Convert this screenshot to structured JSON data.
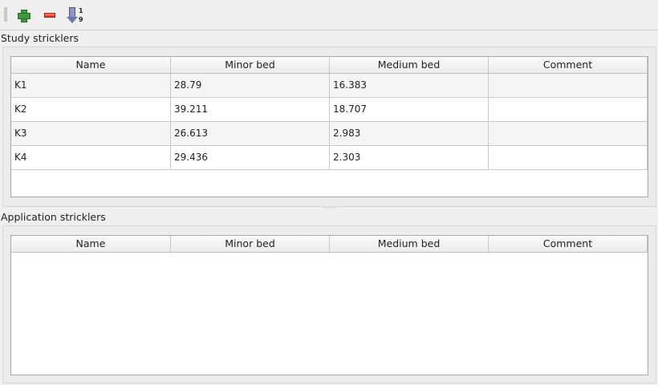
{
  "toolbar": {
    "buttons": [
      {
        "name": "add",
        "icon": "plus-icon"
      },
      {
        "name": "remove",
        "icon": "minus-icon"
      },
      {
        "name": "sort",
        "icon": "sort-ascending-icon",
        "glyph_top": "1",
        "glyph_bottom": "9"
      }
    ]
  },
  "study": {
    "title": "Study stricklers",
    "columns": [
      "Name",
      "Minor bed",
      "Medium bed",
      "Comment"
    ],
    "rows": [
      [
        "K1",
        "28.79",
        "16.383",
        ""
      ],
      [
        "K2",
        "39.211",
        "18.707",
        ""
      ],
      [
        "K3",
        "26.613",
        "2.983",
        ""
      ],
      [
        "K4",
        "29.436",
        "2.303",
        ""
      ]
    ]
  },
  "application": {
    "title": "Application stricklers",
    "columns": [
      "Name",
      "Minor bed",
      "Medium bed",
      "Comment"
    ],
    "rows": []
  }
}
